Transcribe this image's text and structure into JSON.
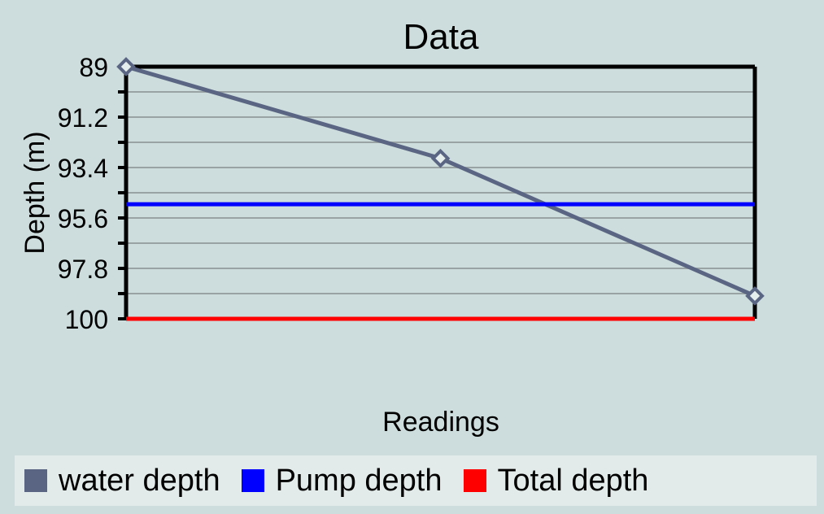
{
  "chart_data": {
    "type": "line",
    "title": "Data",
    "xlabel": "Readings",
    "ylabel": "Depth (m)",
    "ylim": [
      89,
      100
    ],
    "y_inverted": true,
    "yticks": [
      "89",
      "91.2",
      "93.4",
      "95.6",
      "97.8",
      "100"
    ],
    "grid": true,
    "legend_position": "bottom",
    "series": [
      {
        "name": "water depth",
        "color": "#5a6583",
        "x": [
          1,
          2,
          3
        ],
        "values": [
          89,
          93,
          99
        ],
        "marker": "diamond"
      },
      {
        "name": "Pump depth",
        "color": "#0000ff",
        "x": [
          1,
          3
        ],
        "values": [
          95,
          95
        ]
      },
      {
        "name": "Total depth",
        "color": "#ff0000",
        "x": [
          1,
          3
        ],
        "values": [
          100,
          100
        ]
      }
    ]
  }
}
